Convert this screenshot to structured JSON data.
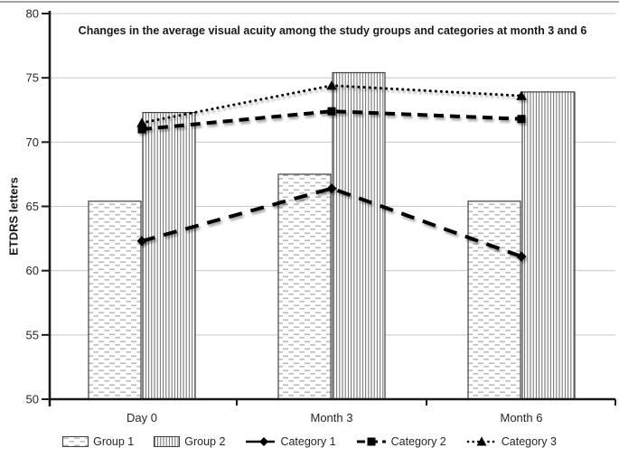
{
  "figure": {
    "background": "#ffffff",
    "top_border_color": "#a3a3a3"
  },
  "chart_data": {
    "type": "bar",
    "subtype": "combo-bar-line",
    "title": "Changes in the average visual acuity among the study groups and categories at month 3 and 6",
    "xlabel": "",
    "ylabel": "ETDRS letters",
    "categories": [
      "Day 0",
      "Month 3",
      "Month 6"
    ],
    "ylim": [
      50,
      80
    ],
    "ytick_step": 5,
    "yticks": [
      50,
      55,
      60,
      65,
      70,
      75,
      80
    ],
    "grid": true,
    "legend_position": "bottom",
    "bar_series": [
      {
        "name": "Group 1",
        "fill_pattern": "staggered-horizontal-dashes",
        "values": [
          65.4,
          67.5,
          65.4
        ]
      },
      {
        "name": "Group 2",
        "fill_pattern": "vertical-lines",
        "values": [
          72.3,
          75.4,
          73.9
        ]
      }
    ],
    "line_series": [
      {
        "name": "Category 1",
        "marker": "diamond",
        "line_style": "long-dash",
        "values": [
          62.3,
          66.4,
          61.1
        ]
      },
      {
        "name": "Category 2",
        "marker": "square",
        "line_style": "dash",
        "values": [
          71.0,
          72.4,
          71.8
        ]
      },
      {
        "name": "Category 3",
        "marker": "triangle",
        "line_style": "dot",
        "values": [
          71.5,
          74.4,
          73.6
        ]
      }
    ],
    "colors": {
      "axis": "#1a1a1a",
      "grid": "#c8c8c8",
      "text": "#262626",
      "series_stroke": "#000000",
      "bar_border": "#404040",
      "pattern_dash_gray": "#a8a8a8",
      "pattern_line_gray": "#6e6e6e"
    }
  }
}
